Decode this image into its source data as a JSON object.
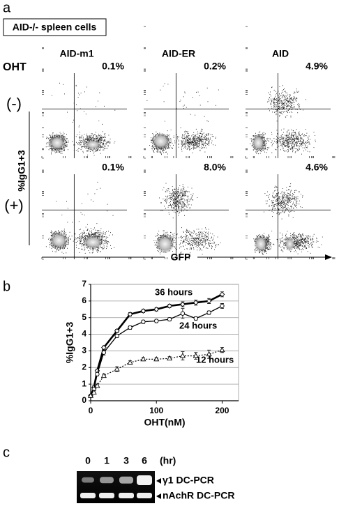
{
  "panel_a": {
    "label": "a",
    "sample": "AID-/- spleen cells",
    "columns": [
      "AID-m1",
      "AID-ER",
      "AID"
    ],
    "row_title": "OHT",
    "rows": [
      {
        "label": "(-)",
        "percents": [
          "0.1%",
          "0.2%",
          "4.9%"
        ]
      },
      {
        "label": "(+)",
        "percents": [
          "0.1%",
          "8.0%",
          "4.6%"
        ]
      }
    ],
    "y_label": "%IgG1+3",
    "x_label": "GFP"
  },
  "chart_data": {
    "type": "line",
    "panel_label": "b",
    "xlabel": "OHT(nM)",
    "ylabel": "%IgG1+3",
    "x": [
      0,
      5,
      10,
      20,
      40,
      60,
      80,
      100,
      120,
      140,
      160,
      180,
      200
    ],
    "xlim": [
      0,
      225
    ],
    "xticks": [
      0,
      100,
      200
    ],
    "ylim": [
      0,
      7
    ],
    "yticks": [
      0,
      1,
      2,
      3,
      4,
      5,
      6,
      7
    ],
    "grid": true,
    "series": [
      {
        "name": "36 hours",
        "color": "#000000",
        "style": "thick",
        "marker": "diamond",
        "values": [
          0.3,
          0.8,
          1.8,
          3.2,
          4.2,
          5.2,
          5.4,
          5.5,
          5.7,
          5.8,
          5.9,
          6.0,
          6.4
        ],
        "errors": [
          0.05,
          0.1,
          0.1,
          0.1,
          0.1,
          0.1,
          0.1,
          0.1,
          0.1,
          0.15,
          0.15,
          0.15,
          0.15
        ]
      },
      {
        "name": "24 hours",
        "color": "#000000",
        "style": "solid",
        "marker": "circle",
        "values": [
          0.3,
          0.7,
          1.6,
          2.9,
          3.9,
          4.4,
          4.75,
          4.8,
          4.9,
          5.25,
          4.95,
          5.3,
          5.7
        ],
        "errors": [
          0.05,
          0.1,
          0.1,
          0.15,
          0.1,
          0.1,
          0.1,
          0.1,
          0.1,
          0.3,
          0.1,
          0.1,
          0.15
        ]
      },
      {
        "name": "12 hours",
        "color": "#000000",
        "style": "dotted",
        "marker": "triangle",
        "values": [
          0.3,
          0.5,
          0.9,
          1.5,
          1.9,
          2.3,
          2.5,
          2.5,
          2.55,
          2.7,
          2.7,
          2.8,
          3.05
        ],
        "errors": [
          0.05,
          0.1,
          0.1,
          0.1,
          0.15,
          0.1,
          0.1,
          0.1,
          0.1,
          0.25,
          0.2,
          0.25,
          0.15
        ]
      }
    ]
  },
  "panel_c": {
    "label": "c",
    "lanes": [
      "0",
      "1",
      "3",
      "6"
    ],
    "unit": "(hr)",
    "bands": [
      "γ1 DC-PCR",
      "nAchR DC-PCR"
    ]
  }
}
